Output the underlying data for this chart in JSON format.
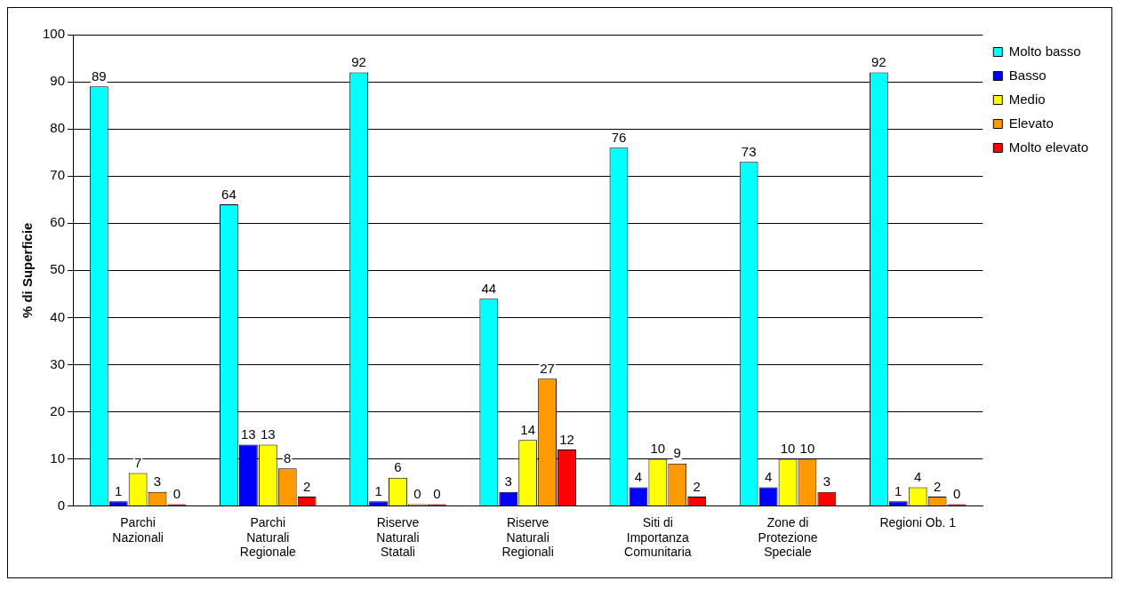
{
  "chart_data": {
    "type": "bar",
    "ylabel": "% di Superficie",
    "categories": [
      "Parchi Nazionali",
      "Parchi Naturali Regionale",
      "Riserve Naturali Statali",
      "Riserve Naturali Regionali",
      "Siti di Importanza Comunitaria",
      "Zone di Protezione Speciale",
      "Regioni Ob. 1"
    ],
    "series": [
      {
        "name": "Molto basso",
        "color": "#00ffff",
        "values": [
          89,
          64,
          92,
          44,
          76,
          73,
          92
        ]
      },
      {
        "name": "Basso",
        "color": "#0000ff",
        "values": [
          1,
          13,
          1,
          3,
          4,
          4,
          1
        ]
      },
      {
        "name": "Medio",
        "color": "#ffff00",
        "values": [
          7,
          13,
          6,
          14,
          10,
          10,
          4
        ]
      },
      {
        "name": "Elevato",
        "color": "#ff9900",
        "values": [
          3,
          8,
          0,
          27,
          9,
          10,
          2
        ]
      },
      {
        "name": "Molto elevato",
        "color": "#ff0000",
        "values": [
          0,
          2,
          0,
          12,
          2,
          3,
          0
        ]
      }
    ],
    "ylim": [
      0,
      100
    ],
    "yticks": [
      0,
      10,
      20,
      30,
      40,
      50,
      60,
      70,
      80,
      90,
      100
    ],
    "grid": "y",
    "legend": "right",
    "data_labels": true
  }
}
